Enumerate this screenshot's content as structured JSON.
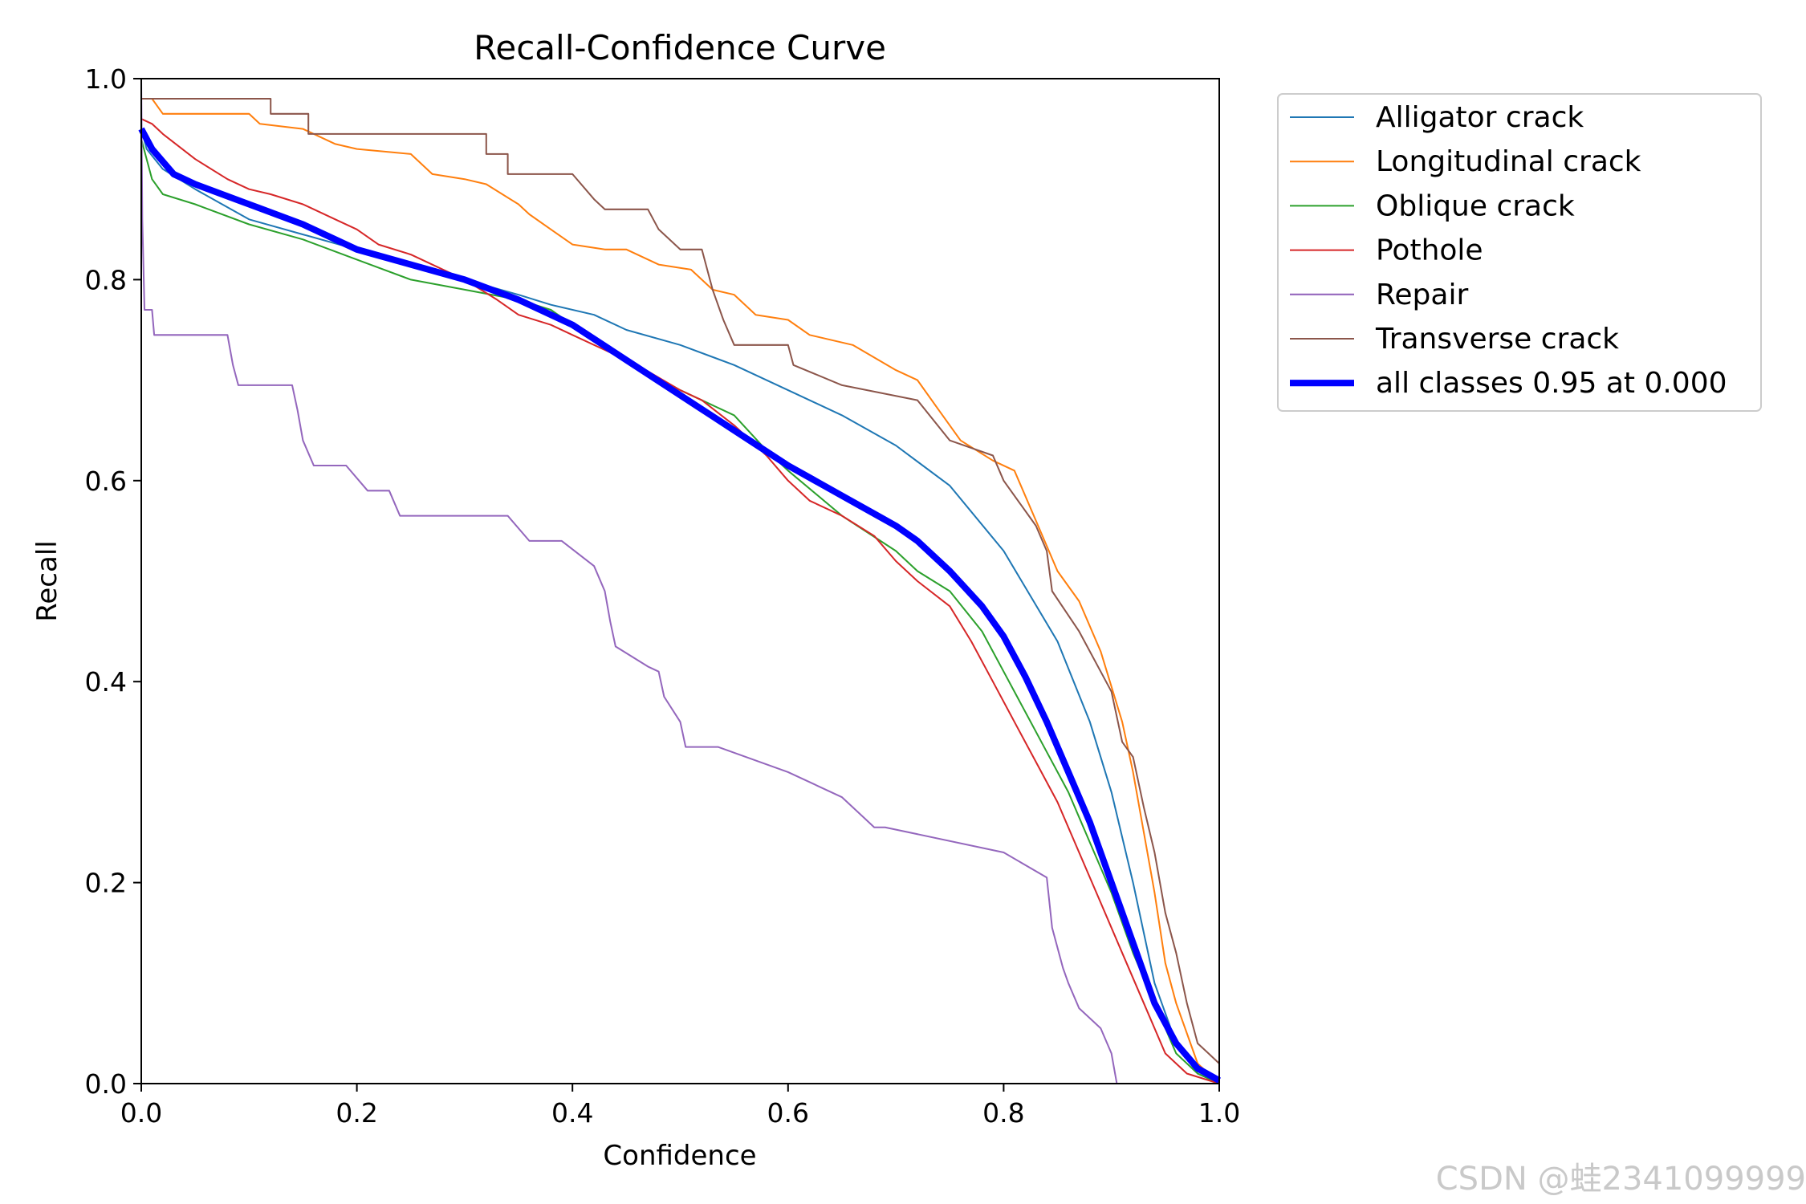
{
  "chart_data": {
    "type": "line",
    "title": "Recall-Confidence Curve",
    "xlabel": "Confidence",
    "ylabel": "Recall",
    "xlim": [
      0,
      1
    ],
    "ylim": [
      0,
      1
    ],
    "xticks": [
      "0.0",
      "0.2",
      "0.4",
      "0.6",
      "0.8",
      "1.0"
    ],
    "yticks": [
      "0.0",
      "0.2",
      "0.4",
      "0.6",
      "0.8",
      "1.0"
    ],
    "grid": false,
    "legend_position": "outside-top-right",
    "series": [
      {
        "name": "Alligator crack",
        "color": "#1f77b4",
        "width": 1.5,
        "points": [
          [
            0,
            0.95
          ],
          [
            0.005,
            0.93
          ],
          [
            0.02,
            0.91
          ],
          [
            0.05,
            0.89
          ],
          [
            0.1,
            0.86
          ],
          [
            0.15,
            0.845
          ],
          [
            0.2,
            0.83
          ],
          [
            0.25,
            0.815
          ],
          [
            0.3,
            0.8
          ],
          [
            0.35,
            0.785
          ],
          [
            0.38,
            0.775
          ],
          [
            0.42,
            0.765
          ],
          [
            0.45,
            0.75
          ],
          [
            0.5,
            0.735
          ],
          [
            0.55,
            0.715
          ],
          [
            0.6,
            0.69
          ],
          [
            0.65,
            0.665
          ],
          [
            0.7,
            0.635
          ],
          [
            0.75,
            0.595
          ],
          [
            0.8,
            0.53
          ],
          [
            0.85,
            0.44
          ],
          [
            0.88,
            0.36
          ],
          [
            0.9,
            0.29
          ],
          [
            0.92,
            0.2
          ],
          [
            0.94,
            0.1
          ],
          [
            0.96,
            0.04
          ],
          [
            0.98,
            0.01
          ],
          [
            1.0,
            0.0
          ]
        ]
      },
      {
        "name": "Longitudinal crack",
        "color": "#ff7f0e",
        "width": 1.5,
        "points": [
          [
            0,
            0.98
          ],
          [
            0.01,
            0.98
          ],
          [
            0.02,
            0.965
          ],
          [
            0.05,
            0.965
          ],
          [
            0.1,
            0.965
          ],
          [
            0.11,
            0.955
          ],
          [
            0.15,
            0.95
          ],
          [
            0.18,
            0.935
          ],
          [
            0.2,
            0.93
          ],
          [
            0.25,
            0.925
          ],
          [
            0.27,
            0.905
          ],
          [
            0.3,
            0.9
          ],
          [
            0.32,
            0.895
          ],
          [
            0.35,
            0.875
          ],
          [
            0.36,
            0.865
          ],
          [
            0.38,
            0.85
          ],
          [
            0.4,
            0.835
          ],
          [
            0.43,
            0.83
          ],
          [
            0.45,
            0.83
          ],
          [
            0.48,
            0.815
          ],
          [
            0.51,
            0.81
          ],
          [
            0.53,
            0.79
          ],
          [
            0.55,
            0.785
          ],
          [
            0.57,
            0.765
          ],
          [
            0.6,
            0.76
          ],
          [
            0.62,
            0.745
          ],
          [
            0.66,
            0.735
          ],
          [
            0.7,
            0.71
          ],
          [
            0.72,
            0.7
          ],
          [
            0.74,
            0.67
          ],
          [
            0.76,
            0.64
          ],
          [
            0.79,
            0.62
          ],
          [
            0.81,
            0.61
          ],
          [
            0.83,
            0.56
          ],
          [
            0.85,
            0.51
          ],
          [
            0.87,
            0.48
          ],
          [
            0.89,
            0.43
          ],
          [
            0.91,
            0.36
          ],
          [
            0.92,
            0.31
          ],
          [
            0.93,
            0.25
          ],
          [
            0.94,
            0.19
          ],
          [
            0.95,
            0.12
          ],
          [
            0.96,
            0.08
          ],
          [
            0.97,
            0.05
          ],
          [
            0.98,
            0.02
          ],
          [
            1.0,
            0.0
          ]
        ]
      },
      {
        "name": "Oblique crack",
        "color": "#2ca02c",
        "width": 1.5,
        "points": [
          [
            0,
            0.94
          ],
          [
            0.005,
            0.92
          ],
          [
            0.01,
            0.9
          ],
          [
            0.02,
            0.885
          ],
          [
            0.05,
            0.875
          ],
          [
            0.1,
            0.855
          ],
          [
            0.15,
            0.84
          ],
          [
            0.2,
            0.82
          ],
          [
            0.25,
            0.8
          ],
          [
            0.3,
            0.79
          ],
          [
            0.35,
            0.78
          ],
          [
            0.38,
            0.77
          ],
          [
            0.42,
            0.74
          ],
          [
            0.45,
            0.72
          ],
          [
            0.5,
            0.69
          ],
          [
            0.55,
            0.665
          ],
          [
            0.58,
            0.63
          ],
          [
            0.6,
            0.61
          ],
          [
            0.65,
            0.565
          ],
          [
            0.7,
            0.53
          ],
          [
            0.72,
            0.51
          ],
          [
            0.75,
            0.49
          ],
          [
            0.78,
            0.45
          ],
          [
            0.8,
            0.41
          ],
          [
            0.82,
            0.37
          ],
          [
            0.84,
            0.33
          ],
          [
            0.86,
            0.29
          ],
          [
            0.88,
            0.24
          ],
          [
            0.9,
            0.19
          ],
          [
            0.92,
            0.13
          ],
          [
            0.94,
            0.08
          ],
          [
            0.96,
            0.03
          ],
          [
            0.98,
            0.01
          ],
          [
            1.0,
            0.0
          ]
        ]
      },
      {
        "name": "Pothole",
        "color": "#d62728",
        "width": 1.5,
        "points": [
          [
            0,
            0.96
          ],
          [
            0.01,
            0.955
          ],
          [
            0.02,
            0.945
          ],
          [
            0.05,
            0.92
          ],
          [
            0.08,
            0.9
          ],
          [
            0.1,
            0.89
          ],
          [
            0.12,
            0.885
          ],
          [
            0.15,
            0.875
          ],
          [
            0.18,
            0.86
          ],
          [
            0.2,
            0.85
          ],
          [
            0.22,
            0.835
          ],
          [
            0.25,
            0.825
          ],
          [
            0.28,
            0.81
          ],
          [
            0.3,
            0.8
          ],
          [
            0.33,
            0.78
          ],
          [
            0.35,
            0.765
          ],
          [
            0.38,
            0.755
          ],
          [
            0.4,
            0.745
          ],
          [
            0.43,
            0.73
          ],
          [
            0.46,
            0.715
          ],
          [
            0.5,
            0.69
          ],
          [
            0.52,
            0.68
          ],
          [
            0.55,
            0.655
          ],
          [
            0.58,
            0.625
          ],
          [
            0.6,
            0.6
          ],
          [
            0.62,
            0.58
          ],
          [
            0.65,
            0.565
          ],
          [
            0.68,
            0.545
          ],
          [
            0.7,
            0.52
          ],
          [
            0.72,
            0.5
          ],
          [
            0.75,
            0.475
          ],
          [
            0.77,
            0.44
          ],
          [
            0.79,
            0.4
          ],
          [
            0.81,
            0.36
          ],
          [
            0.83,
            0.32
          ],
          [
            0.85,
            0.28
          ],
          [
            0.87,
            0.23
          ],
          [
            0.89,
            0.18
          ],
          [
            0.91,
            0.13
          ],
          [
            0.93,
            0.08
          ],
          [
            0.95,
            0.03
          ],
          [
            0.97,
            0.01
          ],
          [
            1.0,
            0.0
          ]
        ]
      },
      {
        "name": "Repair",
        "color": "#9467bd",
        "width": 1.5,
        "points": [
          [
            0,
            1.0
          ],
          [
            0.001,
            0.86
          ],
          [
            0.003,
            0.77
          ],
          [
            0.01,
            0.77
          ],
          [
            0.012,
            0.745
          ],
          [
            0.05,
            0.745
          ],
          [
            0.08,
            0.745
          ],
          [
            0.085,
            0.715
          ],
          [
            0.09,
            0.695
          ],
          [
            0.1,
            0.695
          ],
          [
            0.12,
            0.695
          ],
          [
            0.14,
            0.695
          ],
          [
            0.145,
            0.67
          ],
          [
            0.15,
            0.64
          ],
          [
            0.16,
            0.615
          ],
          [
            0.19,
            0.615
          ],
          [
            0.21,
            0.59
          ],
          [
            0.23,
            0.59
          ],
          [
            0.24,
            0.565
          ],
          [
            0.3,
            0.565
          ],
          [
            0.34,
            0.565
          ],
          [
            0.36,
            0.54
          ],
          [
            0.39,
            0.54
          ],
          [
            0.42,
            0.515
          ],
          [
            0.43,
            0.49
          ],
          [
            0.435,
            0.46
          ],
          [
            0.44,
            0.435
          ],
          [
            0.47,
            0.415
          ],
          [
            0.48,
            0.41
          ],
          [
            0.485,
            0.385
          ],
          [
            0.5,
            0.36
          ],
          [
            0.505,
            0.335
          ],
          [
            0.535,
            0.335
          ],
          [
            0.6,
            0.31
          ],
          [
            0.65,
            0.285
          ],
          [
            0.68,
            0.255
          ],
          [
            0.69,
            0.255
          ],
          [
            0.8,
            0.23
          ],
          [
            0.84,
            0.205
          ],
          [
            0.845,
            0.155
          ],
          [
            0.855,
            0.115
          ],
          [
            0.86,
            0.1
          ],
          [
            0.87,
            0.075
          ],
          [
            0.89,
            0.055
          ],
          [
            0.9,
            0.03
          ],
          [
            0.905,
            0.0
          ],
          [
            1.0,
            0.0
          ]
        ]
      },
      {
        "name": "Transverse crack",
        "color": "#8c564b",
        "width": 1.5,
        "points": [
          [
            0,
            0.98
          ],
          [
            0.05,
            0.98
          ],
          [
            0.12,
            0.98
          ],
          [
            0.12,
            0.965
          ],
          [
            0.155,
            0.965
          ],
          [
            0.155,
            0.945
          ],
          [
            0.3,
            0.945
          ],
          [
            0.32,
            0.945
          ],
          [
            0.32,
            0.925
          ],
          [
            0.34,
            0.925
          ],
          [
            0.34,
            0.905
          ],
          [
            0.36,
            0.905
          ],
          [
            0.4,
            0.905
          ],
          [
            0.42,
            0.88
          ],
          [
            0.43,
            0.87
          ],
          [
            0.45,
            0.87
          ],
          [
            0.47,
            0.87
          ],
          [
            0.48,
            0.85
          ],
          [
            0.5,
            0.83
          ],
          [
            0.52,
            0.83
          ],
          [
            0.53,
            0.79
          ],
          [
            0.54,
            0.76
          ],
          [
            0.55,
            0.735
          ],
          [
            0.6,
            0.735
          ],
          [
            0.605,
            0.715
          ],
          [
            0.65,
            0.695
          ],
          [
            0.72,
            0.68
          ],
          [
            0.75,
            0.64
          ],
          [
            0.79,
            0.625
          ],
          [
            0.8,
            0.6
          ],
          [
            0.83,
            0.555
          ],
          [
            0.84,
            0.53
          ],
          [
            0.845,
            0.49
          ],
          [
            0.87,
            0.45
          ],
          [
            0.89,
            0.41
          ],
          [
            0.9,
            0.39
          ],
          [
            0.91,
            0.34
          ],
          [
            0.92,
            0.325
          ],
          [
            0.93,
            0.275
          ],
          [
            0.94,
            0.23
          ],
          [
            0.95,
            0.17
          ],
          [
            0.96,
            0.13
          ],
          [
            0.97,
            0.08
          ],
          [
            0.98,
            0.04
          ],
          [
            0.99,
            0.03
          ],
          [
            1.0,
            0.02
          ],
          [
            1.0,
            0.0
          ]
        ]
      },
      {
        "name": "all classes 0.95 at 0.000",
        "color": "#0000ff",
        "width": 6,
        "points": [
          [
            0,
            0.95
          ],
          [
            0.01,
            0.93
          ],
          [
            0.03,
            0.905
          ],
          [
            0.05,
            0.895
          ],
          [
            0.1,
            0.875
          ],
          [
            0.15,
            0.855
          ],
          [
            0.2,
            0.83
          ],
          [
            0.25,
            0.815
          ],
          [
            0.3,
            0.8
          ],
          [
            0.35,
            0.78
          ],
          [
            0.4,
            0.755
          ],
          [
            0.45,
            0.72
          ],
          [
            0.5,
            0.685
          ],
          [
            0.55,
            0.65
          ],
          [
            0.6,
            0.615
          ],
          [
            0.65,
            0.585
          ],
          [
            0.7,
            0.555
          ],
          [
            0.72,
            0.54
          ],
          [
            0.75,
            0.51
          ],
          [
            0.78,
            0.475
          ],
          [
            0.8,
            0.445
          ],
          [
            0.82,
            0.405
          ],
          [
            0.84,
            0.36
          ],
          [
            0.86,
            0.31
          ],
          [
            0.88,
            0.26
          ],
          [
            0.9,
            0.2
          ],
          [
            0.92,
            0.14
          ],
          [
            0.94,
            0.08
          ],
          [
            0.96,
            0.04
          ],
          [
            0.98,
            0.015
          ],
          [
            1.0,
            0.003
          ]
        ]
      }
    ]
  },
  "watermark": "CSDN @蛙2341099999"
}
